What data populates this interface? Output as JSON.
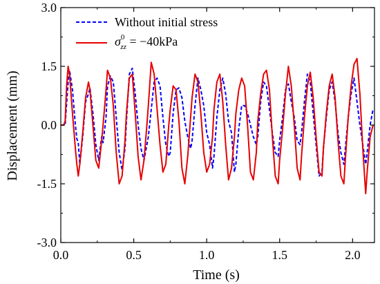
{
  "chart_data": {
    "type": "line",
    "xlabel": "Time (s)",
    "ylabel": "Displacement (mm)",
    "xlim": [
      0.0,
      2.15
    ],
    "ylim": [
      -3.0,
      3.0
    ],
    "x_ticks": [
      "0.0",
      "0.5",
      "1.0",
      "1.5",
      "2.0"
    ],
    "y_ticks": [
      "3.0",
      "1.5",
      "0.0",
      "-1.5",
      "-3.0"
    ],
    "legend_position": "top-left",
    "legend": {
      "series1_label": "Without initial stress",
      "series2_symbol": "σ",
      "series2_sup": "0",
      "series2_sub": "zz",
      "series2_value": " = −40kPa"
    },
    "series": [
      {
        "name": "Without initial stress",
        "color": "#0000ff",
        "style": "dashed",
        "x": [
          0.0,
          0.02,
          0.03,
          0.04,
          0.05,
          0.06,
          0.08,
          0.1,
          0.11,
          0.12,
          0.13,
          0.15,
          0.17,
          0.19,
          0.2,
          0.22,
          0.24,
          0.26,
          0.28,
          0.29,
          0.31,
          0.32,
          0.34,
          0.36,
          0.38,
          0.4,
          0.42,
          0.44,
          0.45,
          0.47,
          0.49,
          0.51,
          0.53,
          0.55,
          0.57,
          0.59,
          0.6,
          0.62,
          0.64,
          0.66,
          0.68,
          0.7,
          0.72,
          0.74,
          0.75,
          0.77,
          0.79,
          0.81,
          0.83,
          0.85,
          0.87,
          0.89,
          0.9,
          0.92,
          0.94,
          0.96,
          0.98,
          1.0,
          1.02,
          1.04,
          1.05,
          1.07,
          1.09,
          1.11,
          1.13,
          1.15,
          1.17,
          1.19,
          1.2,
          1.22,
          1.24,
          1.26,
          1.28,
          1.3,
          1.32,
          1.34,
          1.35,
          1.37,
          1.39,
          1.41,
          1.43,
          1.45,
          1.47,
          1.49,
          1.5,
          1.52,
          1.54,
          1.56,
          1.58,
          1.6,
          1.62,
          1.64,
          1.65,
          1.67,
          1.69,
          1.71,
          1.73,
          1.75,
          1.77,
          1.79,
          1.8,
          1.82,
          1.84,
          1.86,
          1.88,
          1.9,
          1.92,
          1.94,
          1.95,
          1.97,
          1.99,
          2.01,
          2.03,
          2.05,
          2.07,
          2.09,
          2.1,
          2.12,
          2.14
        ],
        "y": [
          0.0,
          0.0,
          0.0,
          0.55,
          1.1,
          1.4,
          0.9,
          0.0,
          -0.35,
          -0.45,
          -1.0,
          -0.3,
          0.6,
          0.8,
          0.95,
          0.3,
          -0.5,
          -0.9,
          -0.3,
          -0.45,
          0.2,
          1.0,
          1.25,
          1.1,
          0.2,
          -0.7,
          -1.15,
          -0.6,
          0.1,
          1.3,
          1.45,
          0.8,
          0.0,
          -0.6,
          -0.9,
          -0.5,
          -0.3,
          0.4,
          1.1,
          1.2,
          1.0,
          0.2,
          -0.5,
          -0.8,
          -0.7,
          0.3,
          0.9,
          0.95,
          0.7,
          0.1,
          -0.3,
          -0.6,
          -0.4,
          0.5,
          1.2,
          0.9,
          0.5,
          -0.2,
          -0.5,
          -1.1,
          -0.8,
          0.2,
          0.9,
          1.2,
          0.8,
          0.1,
          -0.2,
          -1.2,
          -1.0,
          -0.1,
          0.5,
          0.5,
          0.3,
          0.0,
          -0.3,
          -0.5,
          -0.3,
          0.6,
          1.1,
          1.0,
          0.4,
          -0.2,
          -0.7,
          -0.8,
          -0.4,
          0.2,
          0.9,
          1.05,
          0.6,
          0.2,
          -0.4,
          -0.5,
          -0.2,
          0.6,
          1.3,
          1.1,
          0.3,
          -0.5,
          -1.3,
          -1.2,
          -0.6,
          0.2,
          0.9,
          1.1,
          0.6,
          -0.2,
          -0.7,
          -1.0,
          -0.6,
          0.2,
          0.8,
          1.2,
          0.6,
          0.0,
          -0.5,
          -1.0,
          -0.7,
          0.0,
          0.4
        ],
        "y_peaks_note": ""
      },
      {
        "name": "σ⁰zz = −40kPa",
        "color": "#e60000",
        "style": "solid",
        "x": [
          0.0,
          0.02,
          0.03,
          0.04,
          0.05,
          0.06,
          0.08,
          0.1,
          0.11,
          0.12,
          0.13,
          0.15,
          0.17,
          0.19,
          0.2,
          0.22,
          0.24,
          0.26,
          0.28,
          0.29,
          0.31,
          0.32,
          0.34,
          0.36,
          0.38,
          0.4,
          0.42,
          0.44,
          0.45,
          0.47,
          0.49,
          0.51,
          0.53,
          0.55,
          0.57,
          0.59,
          0.6,
          0.62,
          0.64,
          0.66,
          0.68,
          0.7,
          0.72,
          0.74,
          0.75,
          0.77,
          0.79,
          0.81,
          0.83,
          0.85,
          0.87,
          0.89,
          0.9,
          0.92,
          0.94,
          0.96,
          0.98,
          1.0,
          1.02,
          1.04,
          1.05,
          1.07,
          1.09,
          1.11,
          1.13,
          1.15,
          1.17,
          1.19,
          1.2,
          1.22,
          1.24,
          1.26,
          1.28,
          1.3,
          1.32,
          1.34,
          1.35,
          1.37,
          1.39,
          1.41,
          1.43,
          1.45,
          1.47,
          1.49,
          1.5,
          1.52,
          1.54,
          1.56,
          1.58,
          1.6,
          1.62,
          1.64,
          1.65,
          1.67,
          1.69,
          1.71,
          1.73,
          1.75,
          1.77,
          1.79,
          1.8,
          1.82,
          1.84,
          1.86,
          1.88,
          1.9,
          1.92,
          1.94,
          1.95,
          1.97,
          1.99,
          2.01,
          2.03,
          2.05,
          2.07,
          2.09,
          2.1,
          2.12,
          2.14
        ],
        "y": [
          0.0,
          0.0,
          0.1,
          1.0,
          1.5,
          1.3,
          0.3,
          -0.6,
          -1.0,
          -1.3,
          -1.0,
          -0.2,
          0.7,
          1.1,
          0.9,
          0.0,
          -0.9,
          -1.1,
          -0.4,
          0.0,
          0.9,
          1.4,
          1.2,
          0.5,
          -0.7,
          -1.5,
          -1.3,
          -0.4,
          0.3,
          1.2,
          1.3,
          0.3,
          -0.8,
          -1.4,
          -0.9,
          0.0,
          0.5,
          1.6,
          1.3,
          0.4,
          -0.5,
          -1.2,
          -1.0,
          0.0,
          0.4,
          1.0,
          0.9,
          0.1,
          -1.1,
          -1.5,
          -0.8,
          0.2,
          0.7,
          1.3,
          1.1,
          0.3,
          -0.7,
          -1.2,
          -1.0,
          -0.3,
          0.4,
          1.1,
          1.3,
          0.6,
          -0.5,
          -1.4,
          -1.1,
          -0.3,
          0.3,
          0.9,
          1.2,
          1.0,
          0.0,
          -1.2,
          -1.4,
          -0.7,
          0.1,
          0.8,
          1.3,
          1.4,
          0.9,
          -0.3,
          -1.3,
          -1.5,
          -0.9,
          -0.1,
          0.8,
          1.5,
          1.0,
          0.0,
          -1.1,
          -1.4,
          -0.8,
          0.2,
          1.0,
          1.35,
          0.7,
          -0.3,
          -1.2,
          -1.3,
          -0.6,
          0.3,
          1.0,
          1.3,
          0.7,
          -0.4,
          -1.3,
          -1.5,
          -0.9,
          0.2,
          1.0,
          1.55,
          1.7,
          0.8,
          -0.6,
          -1.75,
          -1.2,
          -0.3,
          0.0
        ]
      }
    ]
  }
}
